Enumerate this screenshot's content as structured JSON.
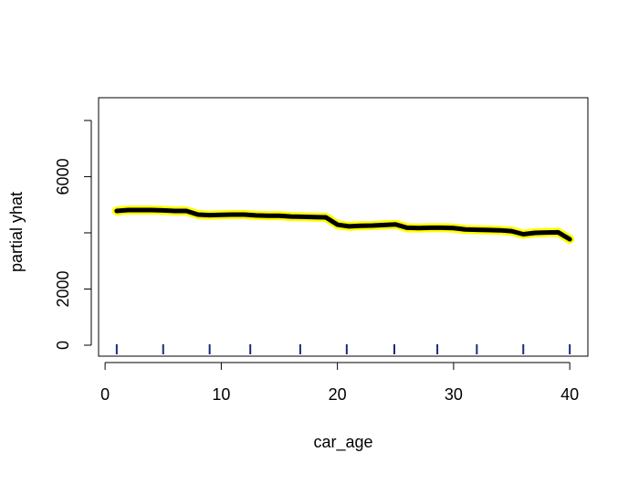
{
  "chart_data": {
    "type": "line",
    "xlabel": "car_age",
    "ylabel": "partial yhat",
    "x": [
      1,
      2,
      3,
      4,
      5,
      6,
      7,
      8,
      9,
      10,
      11,
      12,
      13,
      14,
      15,
      16,
      17,
      18,
      19,
      20,
      21,
      22,
      23,
      24,
      25,
      26,
      27,
      28,
      29,
      30,
      31,
      32,
      33,
      34,
      35,
      36,
      37,
      38,
      39,
      40
    ],
    "series": [
      {
        "color": "#000000",
        "outline_color": "#ffff00",
        "values": [
          4780,
          4810,
          4810,
          4810,
          4800,
          4780,
          4780,
          4650,
          4630,
          4640,
          4650,
          4650,
          4620,
          4610,
          4610,
          4580,
          4570,
          4560,
          4550,
          4290,
          4230,
          4250,
          4260,
          4280,
          4300,
          4180,
          4170,
          4180,
          4180,
          4170,
          4120,
          4110,
          4100,
          4090,
          4060,
          3950,
          4000,
          4010,
          4020,
          3770
        ]
      }
    ],
    "rug": [
      1,
      5,
      9,
      12.5,
      16.8,
      20.8,
      24.9,
      28.6,
      32,
      36,
      40
    ],
    "rug_color": "#1a2a7a",
    "xlim": [
      -0.56,
      41.56
    ],
    "xticks": [
      0,
      10,
      20,
      30,
      40
    ],
    "ylim": [
      -390,
      8810
    ],
    "yticks": [
      0,
      2000,
      {
        "value": 4000,
        "label": null
      },
      6000,
      {
        "value": 8000,
        "label": null
      }
    ]
  }
}
